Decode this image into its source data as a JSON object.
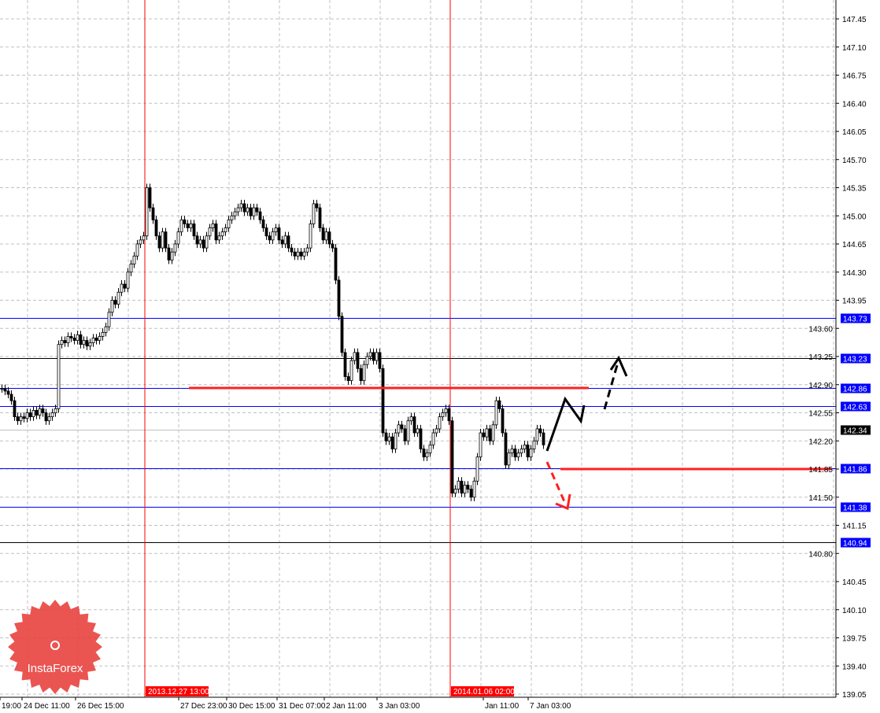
{
  "chart_data": {
    "type": "candlestick",
    "title": "",
    "ylim": [
      139.05,
      147.45
    ],
    "y_ticks": [
      "147.45",
      "147.10",
      "146.75",
      "146.40",
      "146.05",
      "145.70",
      "145.35",
      "145.00",
      "144.65",
      "144.30",
      "143.95",
      "143.60",
      "143.25",
      "142.90",
      "142.55",
      "142.20",
      "141.85",
      "141.50",
      "141.15",
      "140.80",
      "140.45",
      "140.10",
      "139.75",
      "139.40",
      "139.05"
    ],
    "x_ticks": [
      "19:00",
      "24 Dec 11:00",
      "26 Dec 15:00",
      "27 Dec 23:00",
      "30 Dec 15:00",
      "31 Dec 07:00",
      "2 Jan 11:00",
      "3 Jan 03:00",
      "Jan 11:00",
      "7 Jan 03:00"
    ],
    "x_ticks_highlighted": [
      "2013.12.27 13:00",
      "2014.01.06 02:00"
    ],
    "grid": true,
    "closes": [
      142.85,
      142.82,
      142.78,
      142.7,
      142.5,
      142.45,
      142.5,
      142.48,
      142.55,
      142.5,
      142.58,
      142.52,
      142.6,
      142.55,
      142.45,
      142.5,
      142.55,
      142.6,
      143.4,
      143.45,
      143.42,
      143.5,
      143.48,
      143.45,
      143.52,
      143.4,
      143.45,
      143.38,
      143.42,
      143.48,
      143.45,
      143.5,
      143.55,
      143.62,
      143.8,
      143.95,
      143.9,
      144.05,
      144.15,
      144.1,
      144.3,
      144.4,
      144.5,
      144.65,
      144.7,
      144.75,
      145.35,
      145.1,
      144.95,
      144.75,
      144.6,
      144.8,
      144.6,
      144.45,
      144.55,
      144.65,
      144.8,
      144.95,
      144.9,
      144.85,
      144.9,
      144.75,
      144.65,
      144.7,
      144.6,
      144.75,
      144.85,
      144.9,
      144.7,
      144.75,
      144.8,
      144.85,
      144.95,
      145.0,
      145.05,
      145.1,
      145.15,
      145.05,
      145.1,
      145.0,
      145.1,
      145.05,
      144.95,
      144.85,
      144.75,
      144.7,
      144.8,
      144.85,
      144.7,
      144.65,
      144.75,
      144.6,
      144.55,
      144.5,
      144.55,
      144.5,
      144.55,
      144.6,
      144.9,
      145.15,
      145.1,
      144.85,
      144.7,
      144.8,
      144.65,
      144.6,
      144.2,
      143.75,
      143.3,
      143.0,
      142.95,
      143.2,
      143.3,
      143.1,
      142.95,
      143.15,
      143.25,
      143.3,
      143.2,
      143.3,
      143.1,
      142.3,
      142.2,
      142.25,
      142.1,
      142.3,
      142.4,
      142.35,
      142.2,
      142.45,
      142.5,
      142.3,
      142.35,
      142.1,
      142.0,
      142.05,
      142.15,
      142.3,
      142.35,
      142.5,
      142.55,
      142.6,
      142.45,
      141.55,
      141.6,
      141.7,
      141.55,
      141.65,
      141.6,
      141.5,
      141.7,
      142.0,
      142.3,
      142.25,
      142.35,
      142.2,
      142.4,
      142.7,
      142.6,
      142.3,
      141.9,
      142.05,
      142.1,
      142.0,
      142.05,
      142.1,
      142.15,
      142.0,
      142.1,
      142.2,
      142.35,
      142.3,
      142.15
    ],
    "horizontal_levels": [
      {
        "label": "143.73",
        "price": 143.73,
        "color": "#0000ff",
        "badge": "#0000ff"
      },
      {
        "label": "143.23",
        "price": 143.23,
        "color": "#000000",
        "badge": "#0000ff"
      },
      {
        "label": "142.86",
        "price": 142.86,
        "color": "#0000ff",
        "badge": "#0000ff"
      },
      {
        "label": "142.63",
        "price": 142.63,
        "color": "#0000ff",
        "badge": "#0000ff"
      },
      {
        "label": "142.34",
        "price": 142.34,
        "color": "#c0c0c0",
        "badge": "#000000"
      },
      {
        "label": "141.86",
        "price": 141.86,
        "color": "#0000ff",
        "badge": "#0000ff"
      },
      {
        "label": "141.38",
        "price": 141.38,
        "color": "#0000ff",
        "badge": "#0000ff"
      },
      {
        "label": "140.94",
        "price": 140.94,
        "color": "#000000",
        "badge": "#0000ff"
      }
    ],
    "vertical_markers": [
      "2013.12.27 13:00",
      "2014.01.06 02:00"
    ],
    "marker_color": "#ff0000"
  },
  "logo": {
    "text": "InstaForex",
    "color": "#e8423f"
  }
}
